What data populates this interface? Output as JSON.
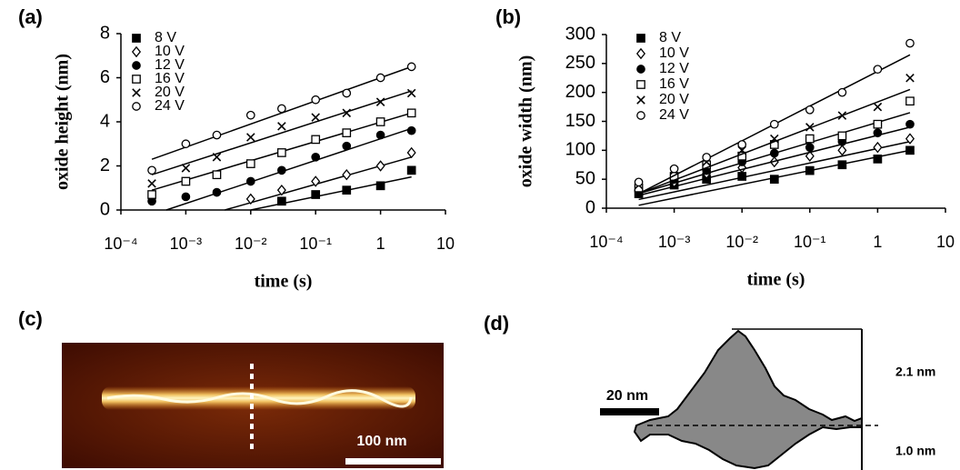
{
  "chart_data": [
    {
      "type": "scatter",
      "panel_label": "(a)",
      "x_label": "time (s)",
      "y_label": "oxide height (nm)",
      "log_x": true,
      "legend": "upper left",
      "xlim": [
        0.0001,
        10
      ],
      "xticks": [
        {
          "value": 0.0001,
          "label": "10⁻⁴"
        },
        {
          "value": 0.001,
          "label": "10⁻³"
        },
        {
          "value": 0.01,
          "label": "10⁻²"
        },
        {
          "value": 0.1,
          "label": "10⁻¹"
        },
        1,
        10
      ],
      "ylim": [
        0,
        8
      ],
      "yticks": [
        0,
        2,
        4,
        6,
        8
      ],
      "x": [
        0.0003,
        0.001,
        0.003,
        0.01,
        0.03,
        0.1,
        0.3,
        1,
        3
      ],
      "series": [
        {
          "name": "8 V",
          "color": "#000000",
          "marker": "filled-square",
          "values": [
            null,
            null,
            null,
            null,
            0.4,
            0.7,
            0.9,
            1.1,
            1.8
          ],
          "fit_x": [
            0.01,
            3
          ],
          "fit": [
            0,
            1.5
          ]
        },
        {
          "name": "10 V",
          "color": "#000000",
          "marker": "open-diamond",
          "values": [
            null,
            null,
            null,
            0.5,
            0.9,
            1.3,
            1.6,
            2.0,
            2.6
          ],
          "fit_x": [
            0.004,
            3
          ],
          "fit": [
            0,
            2.4
          ]
        },
        {
          "name": "12 V",
          "color": "#000000",
          "marker": "filled-circle",
          "values": [
            0.4,
            0.6,
            0.8,
            1.3,
            1.8,
            2.4,
            2.9,
            3.4,
            3.6
          ],
          "fit_x": [
            0.0005,
            3
          ],
          "fit": [
            0,
            3.7
          ]
        },
        {
          "name": "16 V",
          "color": "#000000",
          "marker": "open-square",
          "values": [
            0.7,
            1.3,
            1.6,
            2.1,
            2.6,
            3.2,
            3.5,
            4.0,
            4.4
          ],
          "fit_x": [
            0.0003,
            3
          ],
          "fit": [
            0.9,
            4.4
          ]
        },
        {
          "name": "20 V",
          "color": "#000000",
          "marker": "cross",
          "values": [
            1.2,
            1.9,
            2.4,
            3.3,
            3.8,
            4.2,
            4.4,
            4.9,
            5.3
          ],
          "fit_x": [
            0.0003,
            3
          ],
          "fit": [
            1.6,
            5.4
          ]
        },
        {
          "name": "24 V",
          "color": "#000000",
          "marker": "open-circle",
          "values": [
            1.8,
            3.0,
            3.4,
            4.3,
            4.6,
            5.0,
            5.3,
            6.0,
            6.5
          ],
          "fit_x": [
            0.0003,
            3
          ],
          "fit": [
            2.3,
            6.5
          ]
        }
      ]
    },
    {
      "type": "scatter",
      "panel_label": "(b)",
      "x_label": "time (s)",
      "y_label": "oxide width (nm)",
      "log_x": true,
      "legend": "upper left",
      "xlim": [
        0.0001,
        10
      ],
      "xticks": [
        {
          "value": 0.0001,
          "label": "10⁻⁴"
        },
        {
          "value": 0.001,
          "label": "10⁻³"
        },
        {
          "value": 0.01,
          "label": "10⁻²"
        },
        {
          "value": 0.1,
          "label": "10⁻¹"
        },
        1,
        10
      ],
      "ylim": [
        0,
        300
      ],
      "yticks": [
        0,
        50,
        100,
        150,
        200,
        250,
        300
      ],
      "x": [
        0.0003,
        0.001,
        0.003,
        0.01,
        0.03,
        0.1,
        0.3,
        1,
        3
      ],
      "series": [
        {
          "name": "8 V",
          "color": "#000000",
          "marker": "filled-square",
          "values": [
            25,
            40,
            50,
            55,
            50,
            65,
            75,
            85,
            100
          ],
          "fit_x": [
            0.0003,
            3
          ],
          "fit": [
            5,
            100
          ]
        },
        {
          "name": "10 V",
          "color": "#000000",
          "marker": "open-diamond",
          "values": [
            30,
            45,
            60,
            70,
            80,
            90,
            100,
            105,
            120
          ],
          "fit_x": [
            0.0003,
            3
          ],
          "fit": [
            15,
            115
          ]
        },
        {
          "name": "12 V",
          "color": "#000000",
          "marker": "filled-circle",
          "values": [
            30,
            50,
            65,
            80,
            95,
            105,
            115,
            130,
            145
          ],
          "fit_x": [
            0.0003,
            3
          ],
          "fit": [
            22,
            140
          ]
        },
        {
          "name": "16 V",
          "color": "#000000",
          "marker": "open-square",
          "values": [
            35,
            55,
            75,
            90,
            110,
            120,
            125,
            145,
            185
          ],
          "fit_x": [
            0.0003,
            3
          ],
          "fit": [
            25,
            165
          ]
        },
        {
          "name": "20 V",
          "color": "#000000",
          "marker": "cross",
          "values": [
            40,
            65,
            80,
            100,
            120,
            140,
            160,
            175,
            225
          ],
          "fit_x": [
            0.0003,
            3
          ],
          "fit": [
            25,
            205
          ]
        },
        {
          "name": "24 V",
          "color": "#000000",
          "marker": "open-circle",
          "values": [
            45,
            68,
            88,
            110,
            145,
            170,
            200,
            240,
            285
          ],
          "fit_x": [
            0.0003,
            3
          ],
          "fit": [
            25,
            265
          ]
        }
      ]
    }
  ],
  "images": [
    {
      "panel_label": "(c)",
      "scale_bar": "100 nm"
    },
    {
      "panel_label": "(d)",
      "scale_bar": "20 nm",
      "height_above": "2.1 nm",
      "depth_below": "1.0 nm"
    }
  ]
}
